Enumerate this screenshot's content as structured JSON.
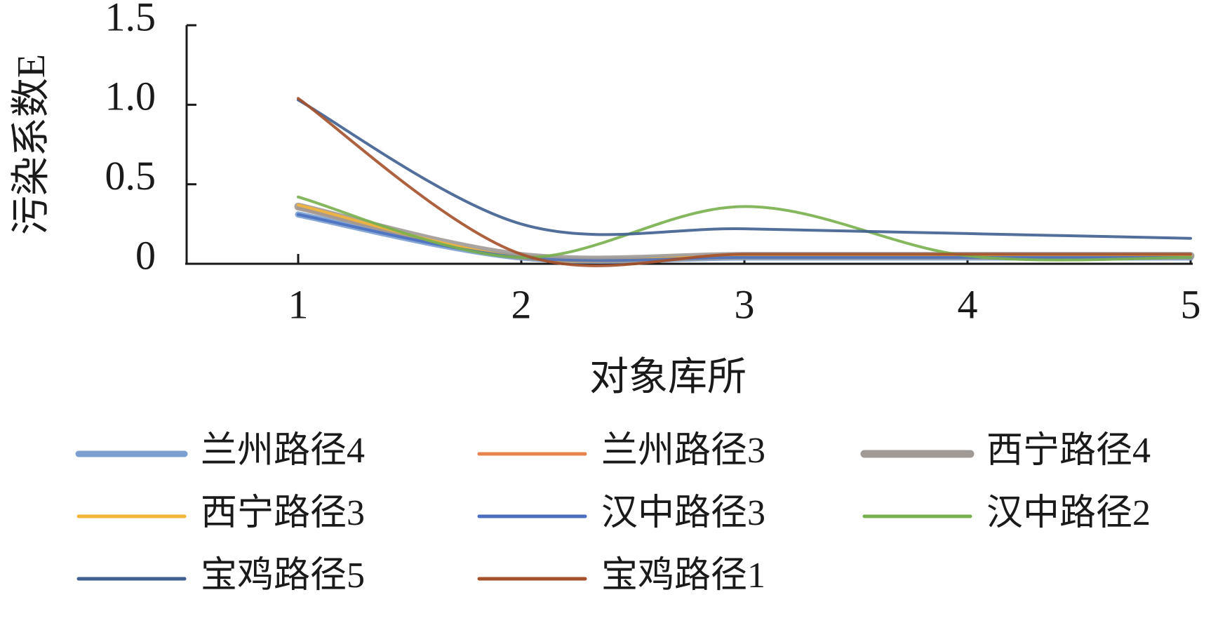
{
  "chart_data": {
    "type": "line",
    "x_label": "对象库所",
    "y_label": "污染系数E",
    "x": [
      1,
      2,
      3,
      4,
      5
    ],
    "xlim": [
      0.5,
      5
    ],
    "xticks": [
      1,
      2,
      3,
      4,
      5
    ],
    "ylim": [
      0,
      1.5
    ],
    "yticks": [
      0,
      0.5,
      {
        "value": 1,
        "label": "1.0"
      },
      1.5
    ],
    "series": [
      {
        "name": "兰州路径4",
        "color": "#7a9fd0",
        "values": [
          0.31,
          0.04,
          0.04,
          0.04,
          0.04
        ]
      },
      {
        "name": "兰州路径3",
        "color": "#e8824f",
        "values": [
          0.35,
          0.04,
          0.05,
          0.05,
          0.05
        ]
      },
      {
        "name": "西宁路径4",
        "color": "#a09a96",
        "values": [
          0.36,
          0.05,
          0.05,
          0.05,
          0.05
        ]
      },
      {
        "name": "西宁路径3",
        "color": "#f3b53a",
        "values": [
          0.37,
          0.04,
          0.05,
          0.05,
          0.05
        ]
      },
      {
        "name": "汉中路径3",
        "color": "#4a6fc0",
        "values": [
          0.31,
          0.04,
          0.04,
          0.04,
          0.04
        ]
      },
      {
        "name": "汉中路径2",
        "color": "#78b04c",
        "values": [
          0.42,
          0.04,
          0.36,
          0.05,
          0.04
        ]
      },
      {
        "name": "宝鸡路径5",
        "color": "#3f5f90",
        "values": [
          1.03,
          0.25,
          0.22,
          0.19,
          0.16
        ]
      },
      {
        "name": "宝鸡路径1",
        "color": "#a5502a",
        "values": [
          1.04,
          0.06,
          0.06,
          0.06,
          0.06
        ]
      }
    ]
  }
}
